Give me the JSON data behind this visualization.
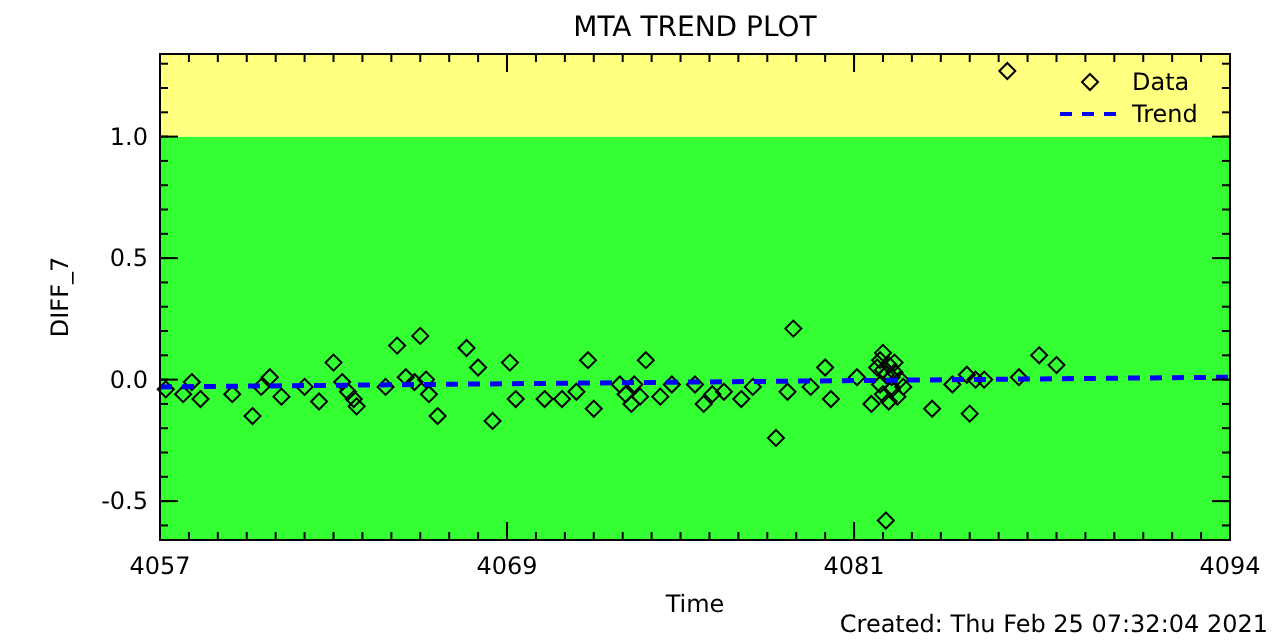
{
  "chart_data": {
    "type": "scatter",
    "title": "MTA TREND PLOT",
    "xlabel": "Time",
    "ylabel": "DIFF_7",
    "annotations": [
      "Created: Thu Feb 25 07:32:04 2021"
    ],
    "xlim": [
      4057,
      4094
    ],
    "xticks": [
      4057,
      4069,
      4081,
      4094
    ],
    "ylim": [
      -0.66,
      1.34
    ],
    "yticks": [
      {
        "value": -0.5,
        "label": "-0.5"
      },
      {
        "value": 0,
        "label": "0.0"
      },
      {
        "value": 0.5,
        "label": "0.5"
      },
      {
        "value": 1,
        "label": "1.0"
      }
    ],
    "bands": [
      {
        "axis": "y",
        "from": -0.66,
        "to": 1,
        "color": "#33ff33"
      },
      {
        "axis": "y",
        "from": 1,
        "to": 1.34,
        "color": "#ffff80"
      }
    ],
    "legend": "top right",
    "series": [
      {
        "name": "Data",
        "marker": "diamond",
        "color": "#000000",
        "x": [
          4057.2,
          4057.8,
          4058.1,
          4058.4,
          4059.5,
          4060.2,
          4060.5,
          4060.8,
          4061.2,
          4062.0,
          4062.5,
          4063.0,
          4063.3,
          4063.5,
          4063.7,
          4063.8,
          4064.8,
          4065.2,
          4065.5,
          4066.0,
          4065.8,
          4066.2,
          4066.3,
          4066.6,
          4067.6,
          4068.0,
          4068.5,
          4069.1,
          4069.3,
          4070.3,
          4070.9,
          4071.4,
          4071.8,
          4072.0,
          4072.9,
          4073.1,
          4073.3,
          4073.4,
          4073.6,
          4073.8,
          4074.3,
          4074.7,
          4075.5,
          4075.8,
          4076.1,
          4076.5,
          4077.1,
          4077.5,
          4078.3,
          4078.7,
          4078.9,
          4079.5,
          4080.0,
          4080.2,
          4081.1,
          4081.6,
          4081.8,
          4081.9,
          4082.0,
          4082.1,
          4082.2,
          4082.3,
          4082.4,
          4082.5,
          4082.6,
          4082.2,
          4082.0,
          4082.4,
          4082.7,
          4081.9,
          4082.3,
          4082.0,
          4082.1,
          4083.7,
          4084.4,
          4084.9,
          4085.0,
          4085.2,
          4085.5,
          4086.7,
          4087.4,
          4088.0,
          4086.3
        ],
        "values": [
          -0.04,
          -0.06,
          -0.01,
          -0.08,
          -0.06,
          -0.15,
          -0.03,
          0.01,
          -0.07,
          -0.03,
          -0.09,
          0.07,
          -0.01,
          -0.05,
          -0.08,
          -0.11,
          -0.03,
          0.14,
          0.01,
          0.18,
          -0.01,
          0.0,
          -0.06,
          -0.15,
          0.13,
          0.05,
          -0.17,
          0.07,
          -0.08,
          -0.08,
          -0.08,
          -0.05,
          0.08,
          -0.12,
          -0.02,
          -0.06,
          -0.1,
          -0.02,
          -0.07,
          0.08,
          -0.07,
          -0.02,
          -0.02,
          -0.1,
          -0.06,
          -0.05,
          -0.08,
          -0.03,
          -0.24,
          -0.05,
          0.21,
          -0.03,
          0.05,
          -0.08,
          0.01,
          -0.1,
          0.05,
          -0.02,
          0.04,
          0.02,
          0.06,
          -0.04,
          0.03,
          -0.07,
          0.0,
          -0.09,
          -0.06,
          0.07,
          -0.03,
          0.08,
          0.01,
          0.11,
          -0.58,
          -0.12,
          -0.02,
          0.02,
          -0.14,
          0.0,
          0.0,
          0.01,
          0.1,
          0.06,
          1.27
        ]
      },
      {
        "name": "Trend",
        "type": "line",
        "line_style": "dashed",
        "color": "#0000ff",
        "x": [
          4057,
          4094
        ],
        "values": [
          -0.03,
          0.01
        ]
      }
    ]
  }
}
